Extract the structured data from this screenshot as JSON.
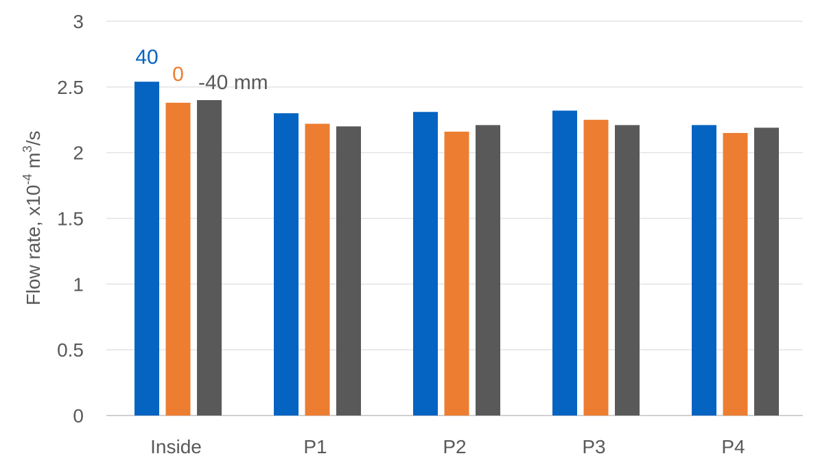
{
  "chart_data": {
    "type": "bar",
    "title": "",
    "xlabel": "",
    "ylabel": {
      "prefix": "Flow rate, x10",
      "exp1": "-4",
      "mid": " m",
      "exp2": "3",
      "suffix": "/s"
    },
    "categories": [
      "Inside",
      "P1",
      "P2",
      "P3",
      "P4"
    ],
    "ylim": [
      0,
      3
    ],
    "yticks": [
      "0",
      "0.5",
      "1",
      "1.5",
      "2",
      "2.5",
      "3"
    ],
    "grid": true,
    "legend": "inline labels above first group",
    "series": [
      {
        "name": "40",
        "color": "#0563C1",
        "values": [
          2.54,
          2.3,
          2.31,
          2.32,
          2.21
        ]
      },
      {
        "name": "0",
        "color": "#ED7D31",
        "values": [
          2.38,
          2.22,
          2.16,
          2.25,
          2.15
        ]
      },
      {
        "name": "-40 mm",
        "color": "#595959",
        "values": [
          2.4,
          2.2,
          2.21,
          2.21,
          2.19
        ]
      }
    ]
  }
}
